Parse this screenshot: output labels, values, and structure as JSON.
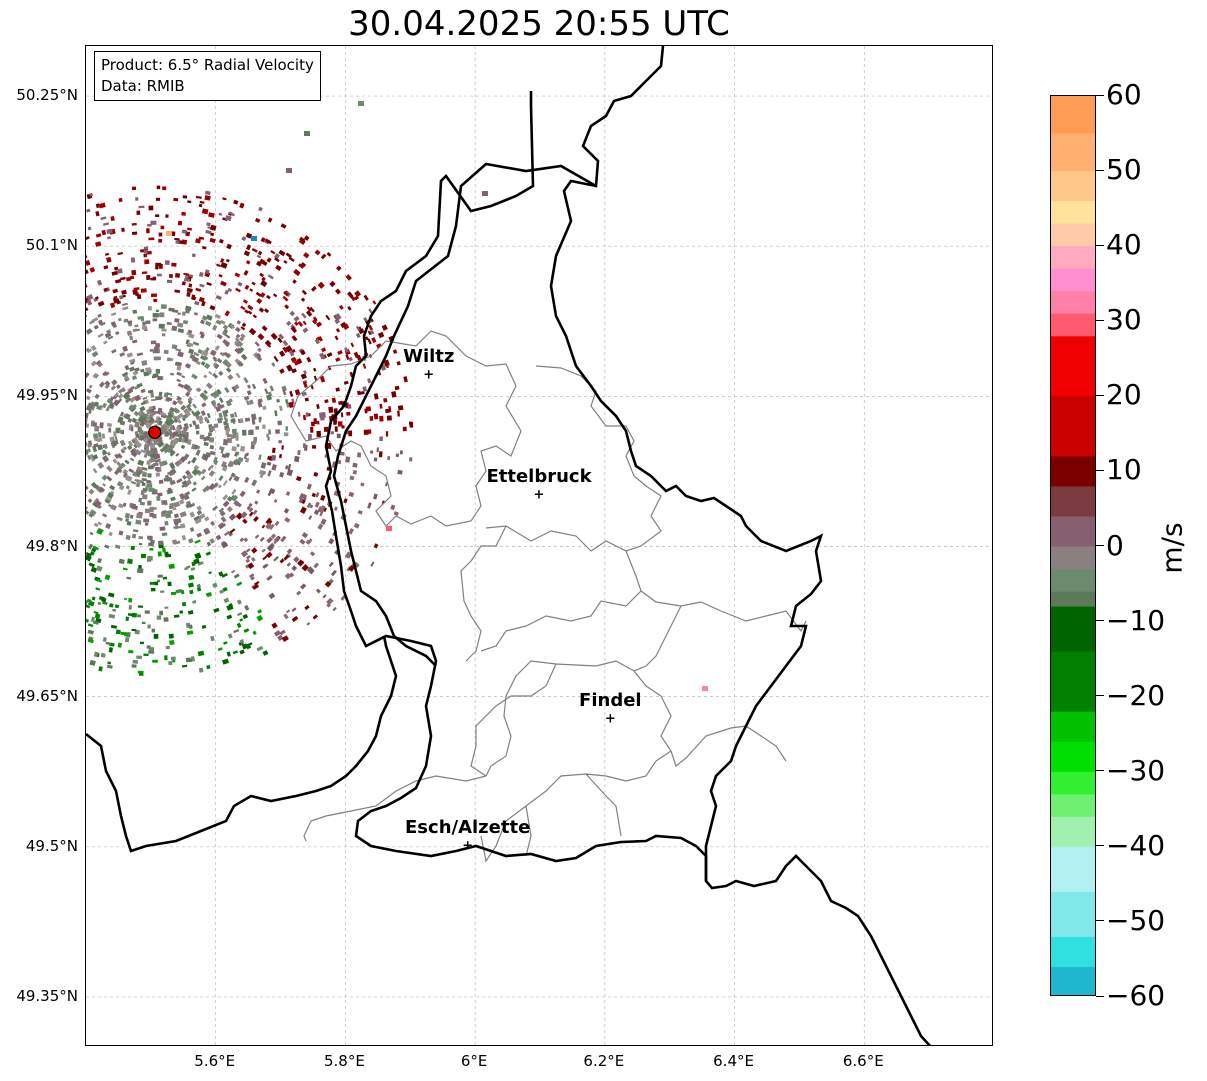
{
  "title": "30.04.2025 20:55 UTC",
  "info": {
    "product": "Product: 6.5° Radial Velocity",
    "source": "Data: RMIB"
  },
  "axes": {
    "lat_labels": [
      "50.25°N",
      "50.1°N",
      "49.95°N",
      "49.8°N",
      "49.65°N",
      "49.5°N",
      "49.35°N"
    ],
    "lon_labels": [
      "5.6°E",
      "5.8°E",
      "6°E",
      "6.2°E",
      "6.4°E",
      "6.6°E"
    ],
    "lat_values": [
      50.25,
      50.1,
      49.95,
      49.8,
      49.65,
      49.5,
      49.35
    ],
    "lon_values": [
      5.6,
      5.8,
      6.0,
      6.2,
      6.4,
      6.6
    ],
    "lon_range": [
      5.4,
      6.8
    ],
    "lat_range": [
      49.3,
      50.3
    ],
    "grid": true
  },
  "cities": [
    {
      "name": "Wiltz",
      "lon": 5.93,
      "lat": 49.97
    },
    {
      "name": "Ettelbruck",
      "lon": 6.1,
      "lat": 49.85
    },
    {
      "name": "Findel",
      "lon": 6.21,
      "lat": 49.627
    },
    {
      "name": "Esch/Alzette",
      "lon": 5.99,
      "lat": 49.5
    }
  ],
  "radar": {
    "lon": 5.506,
    "lat": 49.914,
    "color": "#e00000"
  },
  "colorbar": {
    "unit": "m/s",
    "min": -60,
    "max": 60,
    "tick_labels": [
      "60",
      "50",
      "40",
      "30",
      "20",
      "10",
      "0",
      "−10",
      "−20",
      "−30",
      "−40",
      "−50",
      "−60"
    ],
    "tick_values": [
      60,
      50,
      40,
      30,
      20,
      10,
      0,
      -10,
      -20,
      -30,
      -40,
      -50,
      -60
    ],
    "stops": [
      {
        "v": 60,
        "c": "#ff9b55"
      },
      {
        "v": 55,
        "c": "#ffb070"
      },
      {
        "v": 50,
        "c": "#ffc888"
      },
      {
        "v": 46,
        "c": "#ffe39a"
      },
      {
        "v": 43,
        "c": "#ffcaa8"
      },
      {
        "v": 40,
        "c": "#ffaac0"
      },
      {
        "v": 37,
        "c": "#ff8fd0"
      },
      {
        "v": 34,
        "c": "#ff80a8"
      },
      {
        "v": 31,
        "c": "#ff5a70"
      },
      {
        "v": 28,
        "c": "#f00000"
      },
      {
        "v": 20,
        "c": "#c80000"
      },
      {
        "v": 12,
        "c": "#7a0000"
      },
      {
        "v": 8,
        "c": "#7a3a40"
      },
      {
        "v": 4,
        "c": "#866070"
      },
      {
        "v": 0,
        "c": "#8a8080"
      },
      {
        "v": -3,
        "c": "#6e8a6e"
      },
      {
        "v": -6,
        "c": "#5a7a5a"
      },
      {
        "v": -8,
        "c": "#006400"
      },
      {
        "v": -14,
        "c": "#008000"
      },
      {
        "v": -22,
        "c": "#00c000"
      },
      {
        "v": -26,
        "c": "#00e000"
      },
      {
        "v": -30,
        "c": "#30f030"
      },
      {
        "v": -33,
        "c": "#70f070"
      },
      {
        "v": -36,
        "c": "#a0f0b0"
      },
      {
        "v": -40,
        "c": "#b0f0f0"
      },
      {
        "v": -46,
        "c": "#80e8e8"
      },
      {
        "v": -52,
        "c": "#30e0e0"
      },
      {
        "v": -56,
        "c": "#20b8d0"
      },
      {
        "v": -60,
        "c": "#2080c8"
      }
    ]
  },
  "colors": {
    "border_country": "#000000",
    "border_canton": "#808080",
    "grid": "#bbbbbb"
  }
}
